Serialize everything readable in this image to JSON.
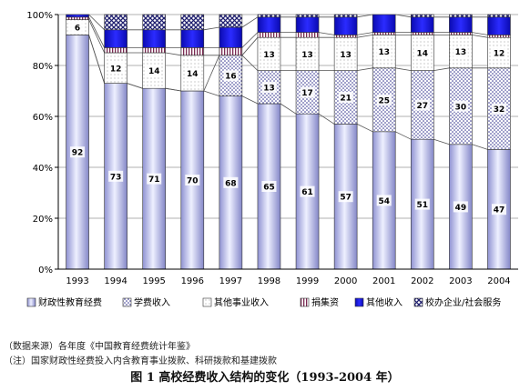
{
  "chart_data": {
    "type": "bar",
    "stacked": true,
    "percent": true,
    "categories": [
      "1993",
      "1994",
      "1995",
      "1996",
      "1997",
      "1998",
      "1999",
      "2000",
      "2001",
      "2002",
      "2003",
      "2004"
    ],
    "y_ticks": [
      "0%",
      "20%",
      "40%",
      "60%",
      "80%",
      "100%"
    ],
    "ylim": [
      0,
      100
    ],
    "legend_position": "bottom",
    "series": [
      {
        "name": "财政性教育经费",
        "values": [
          92,
          73,
          71,
          70,
          68,
          65,
          61,
          57,
          54,
          51,
          49,
          47
        ],
        "labels": [
          "92",
          "73",
          "71",
          "70",
          "68",
          "65",
          "61",
          "57",
          "54",
          "51",
          "49",
          "47"
        ]
      },
      {
        "name": "学费收入",
        "values": [
          0,
          0,
          0,
          0,
          16,
          13,
          17,
          21,
          25,
          27,
          30,
          32
        ],
        "labels": [
          "",
          "",
          "",
          "",
          "16",
          "13",
          "17",
          "21",
          "25",
          "27",
          "30",
          "32"
        ]
      },
      {
        "name": "其他事业收入",
        "values": [
          6,
          12,
          14,
          14,
          0,
          13,
          13,
          13,
          13,
          14,
          13,
          12
        ],
        "labels": [
          "6",
          "12",
          "14",
          "14",
          "",
          "13",
          "13",
          "13",
          "13",
          "14",
          "13",
          "12"
        ]
      },
      {
        "name": "捐集资",
        "values": [
          1,
          2,
          2,
          3,
          3,
          2,
          2,
          1,
          1,
          1,
          1,
          1
        ],
        "labels": []
      },
      {
        "name": "其他收入",
        "values": [
          1,
          7,
          7,
          7,
          8,
          6,
          6,
          7,
          7,
          6,
          6,
          7
        ],
        "labels": []
      },
      {
        "name": "校办企业/社会服务",
        "values": [
          0,
          6,
          6,
          6,
          5,
          1,
          1,
          1,
          0,
          1,
          1,
          1
        ],
        "labels": []
      }
    ],
    "colors": {
      "financial": "#b7b9e6",
      "tuition": "#2d2d8a",
      "other_business": "#c9c9c9",
      "donation": "#7a2a52",
      "other_income": "#1a1ad6",
      "enterprise": "#1e1e6e"
    }
  },
  "notes": {
    "source": "（数据来源）各年度《中国教育经费统计年鉴》",
    "remark": "（注）国家财政性经费投入内含教育事业拨款、科研拨款和基建拨款"
  },
  "figure_title": "图 1  高校经费收入结构的变化（1993-2004 年）"
}
